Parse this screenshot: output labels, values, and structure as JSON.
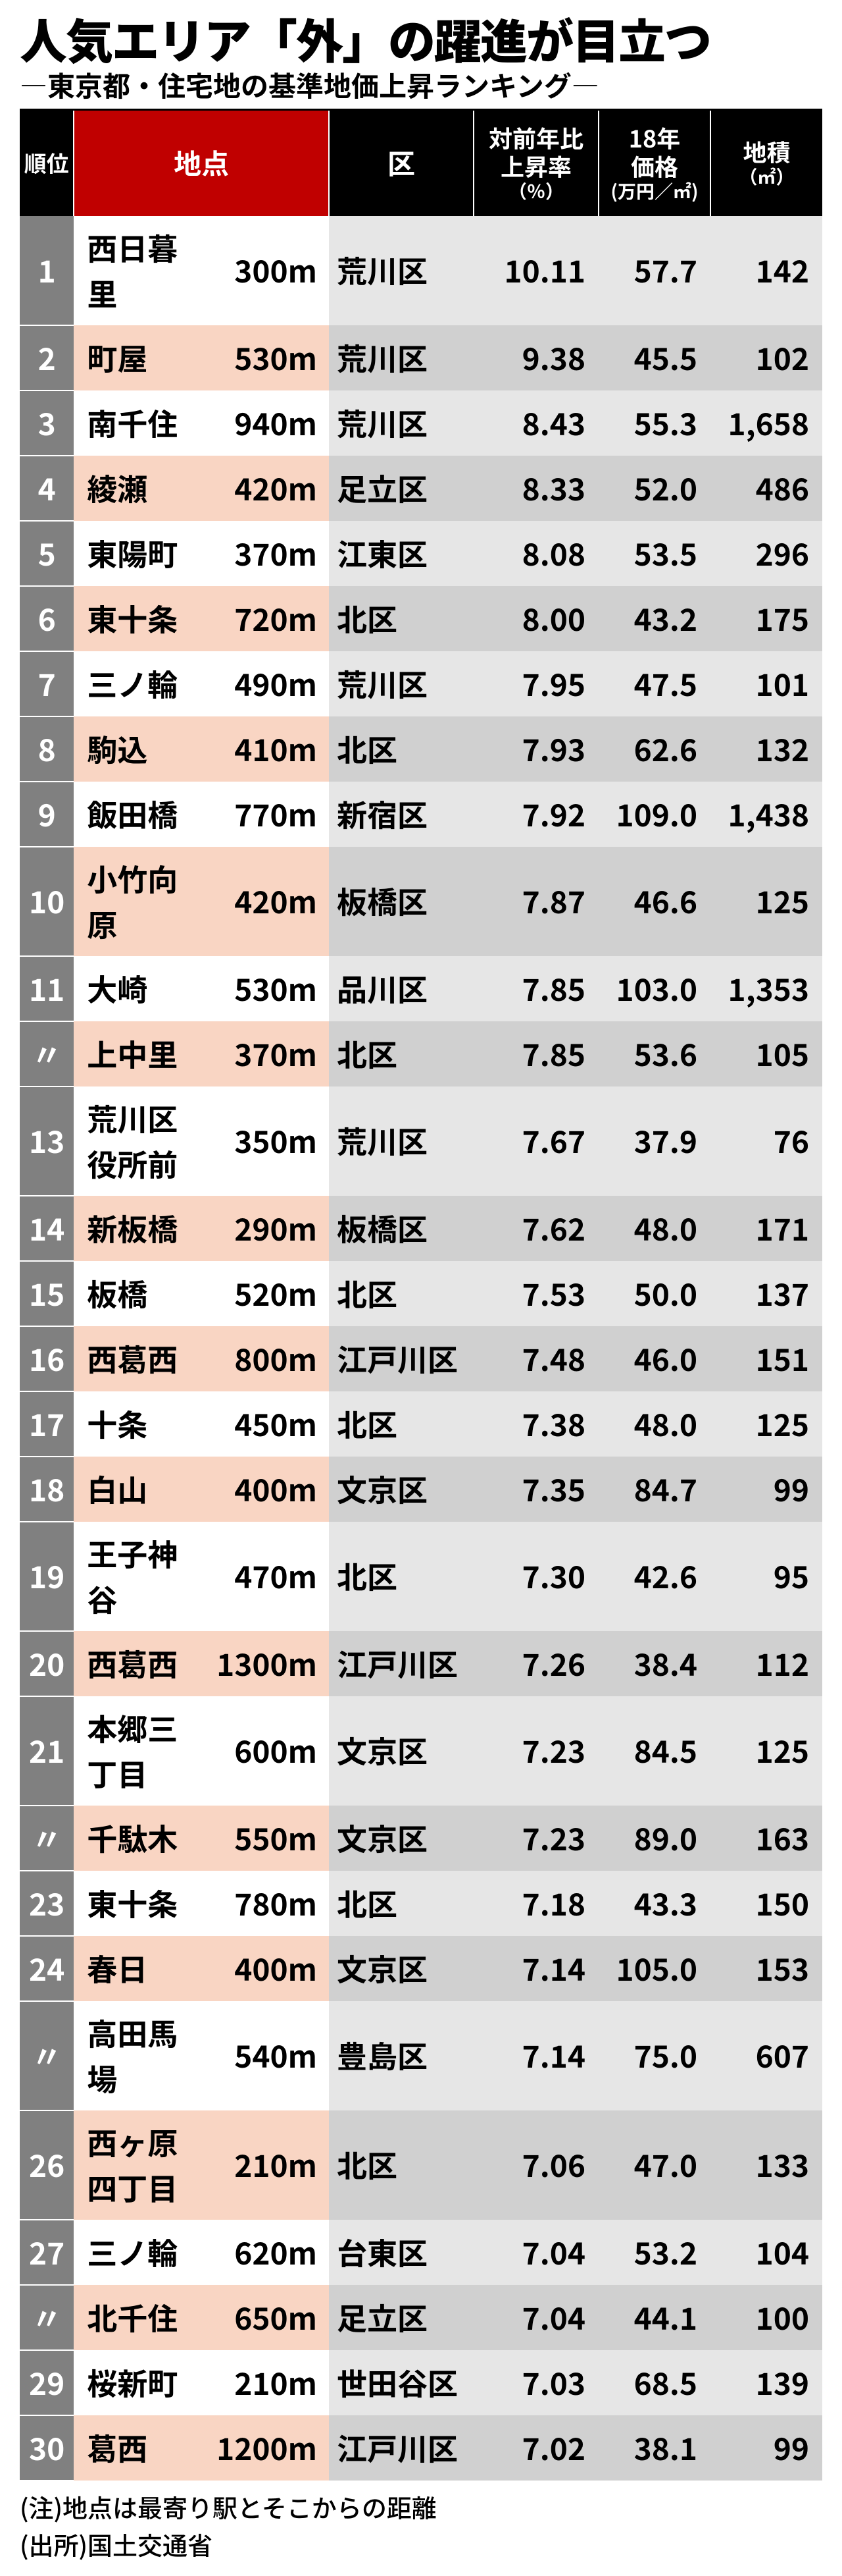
{
  "title": "人気エリア「外」の躍進が目立つ",
  "subtitle": "―東京都・住宅地の基準地価上昇ランキング―",
  "headers": {
    "rank": "順位",
    "point": "地点",
    "ward": "区",
    "rate_l1": "対前年比",
    "rate_l2": "上昇率",
    "rate_l3": "（％）",
    "price_l1": "18年",
    "price_l2": "価格",
    "price_l3": "(万円／㎡)",
    "area_l1": "地積",
    "area_l2": "（㎡）"
  },
  "colors": {
    "header_bg": "#000000",
    "header_point_bg": "#c00000",
    "rank_bg": "#808080",
    "row_a_left": "#ffffff",
    "row_a_right": "#e6e6e6",
    "row_b_left": "#f9d5c3",
    "row_b_right": "#d0d0d0"
  },
  "rows": [
    {
      "rank": "1",
      "name": "西日暮里",
      "dist": "300m",
      "ward": "荒川区",
      "rate": "10.11",
      "price": "57.7",
      "area": "142"
    },
    {
      "rank": "2",
      "name": "町屋",
      "dist": "530m",
      "ward": "荒川区",
      "rate": "9.38",
      "price": "45.5",
      "area": "102"
    },
    {
      "rank": "3",
      "name": "南千住",
      "dist": "940m",
      "ward": "荒川区",
      "rate": "8.43",
      "price": "55.3",
      "area": "1,658"
    },
    {
      "rank": "4",
      "name": "綾瀬",
      "dist": "420m",
      "ward": "足立区",
      "rate": "8.33",
      "price": "52.0",
      "area": "486"
    },
    {
      "rank": "5",
      "name": "東陽町",
      "dist": "370m",
      "ward": "江東区",
      "rate": "8.08",
      "price": "53.5",
      "area": "296"
    },
    {
      "rank": "6",
      "name": "東十条",
      "dist": "720m",
      "ward": "北区",
      "rate": "8.00",
      "price": "43.2",
      "area": "175"
    },
    {
      "rank": "7",
      "name": "三ノ輪",
      "dist": "490m",
      "ward": "荒川区",
      "rate": "7.95",
      "price": "47.5",
      "area": "101"
    },
    {
      "rank": "8",
      "name": "駒込",
      "dist": "410m",
      "ward": "北区",
      "rate": "7.93",
      "price": "62.6",
      "area": "132"
    },
    {
      "rank": "9",
      "name": "飯田橋",
      "dist": "770m",
      "ward": "新宿区",
      "rate": "7.92",
      "price": "109.0",
      "area": "1,438"
    },
    {
      "rank": "10",
      "name": "小竹向原",
      "dist": "420m",
      "ward": "板橋区",
      "rate": "7.87",
      "price": "46.6",
      "area": "125"
    },
    {
      "rank": "11",
      "name": "大崎",
      "dist": "530m",
      "ward": "品川区",
      "rate": "7.85",
      "price": "103.0",
      "area": "1,353"
    },
    {
      "rank": "〃",
      "name": "上中里",
      "dist": "370m",
      "ward": "北区",
      "rate": "7.85",
      "price": "53.6",
      "area": "105"
    },
    {
      "rank": "13",
      "name": "荒川区役所前",
      "dist": "350m",
      "ward": "荒川区",
      "rate": "7.67",
      "price": "37.9",
      "area": "76"
    },
    {
      "rank": "14",
      "name": "新板橋",
      "dist": "290m",
      "ward": "板橋区",
      "rate": "7.62",
      "price": "48.0",
      "area": "171"
    },
    {
      "rank": "15",
      "name": "板橋",
      "dist": "520m",
      "ward": "北区",
      "rate": "7.53",
      "price": "50.0",
      "area": "137"
    },
    {
      "rank": "16",
      "name": "西葛西",
      "dist": "800m",
      "ward": "江戸川区",
      "rate": "7.48",
      "price": "46.0",
      "area": "151"
    },
    {
      "rank": "17",
      "name": "十条",
      "dist": "450m",
      "ward": "北区",
      "rate": "7.38",
      "price": "48.0",
      "area": "125"
    },
    {
      "rank": "18",
      "name": "白山",
      "dist": "400m",
      "ward": "文京区",
      "rate": "7.35",
      "price": "84.7",
      "area": "99"
    },
    {
      "rank": "19",
      "name": "王子神谷",
      "dist": "470m",
      "ward": "北区",
      "rate": "7.30",
      "price": "42.6",
      "area": "95"
    },
    {
      "rank": "20",
      "name": "西葛西",
      "dist": "1300m",
      "ward": "江戸川区",
      "rate": "7.26",
      "price": "38.4",
      "area": "112"
    },
    {
      "rank": "21",
      "name": "本郷三丁目",
      "dist": "600m",
      "ward": "文京区",
      "rate": "7.23",
      "price": "84.5",
      "area": "125"
    },
    {
      "rank": "〃",
      "name": "千駄木",
      "dist": "550m",
      "ward": "文京区",
      "rate": "7.23",
      "price": "89.0",
      "area": "163"
    },
    {
      "rank": "23",
      "name": "東十条",
      "dist": "780m",
      "ward": "北区",
      "rate": "7.18",
      "price": "43.3",
      "area": "150"
    },
    {
      "rank": "24",
      "name": "春日",
      "dist": "400m",
      "ward": "文京区",
      "rate": "7.14",
      "price": "105.0",
      "area": "153"
    },
    {
      "rank": "〃",
      "name": "高田馬場",
      "dist": "540m",
      "ward": "豊島区",
      "rate": "7.14",
      "price": "75.0",
      "area": "607"
    },
    {
      "rank": "26",
      "name": "西ヶ原四丁目",
      "dist": "210m",
      "ward": "北区",
      "rate": "7.06",
      "price": "47.0",
      "area": "133"
    },
    {
      "rank": "27",
      "name": "三ノ輪",
      "dist": "620m",
      "ward": "台東区",
      "rate": "7.04",
      "price": "53.2",
      "area": "104"
    },
    {
      "rank": "〃",
      "name": "北千住",
      "dist": "650m",
      "ward": "足立区",
      "rate": "7.04",
      "price": "44.1",
      "area": "100"
    },
    {
      "rank": "29",
      "name": "桜新町",
      "dist": "210m",
      "ward": "世田谷区",
      "rate": "7.03",
      "price": "68.5",
      "area": "139"
    },
    {
      "rank": "30",
      "name": "葛西",
      "dist": "1200m",
      "ward": "江戸川区",
      "rate": "7.02",
      "price": "38.1",
      "area": "99"
    }
  ],
  "notes": {
    "l1": "(注)地点は最寄り駅とそこからの距離",
    "l2": "(出所)国土交通省"
  }
}
